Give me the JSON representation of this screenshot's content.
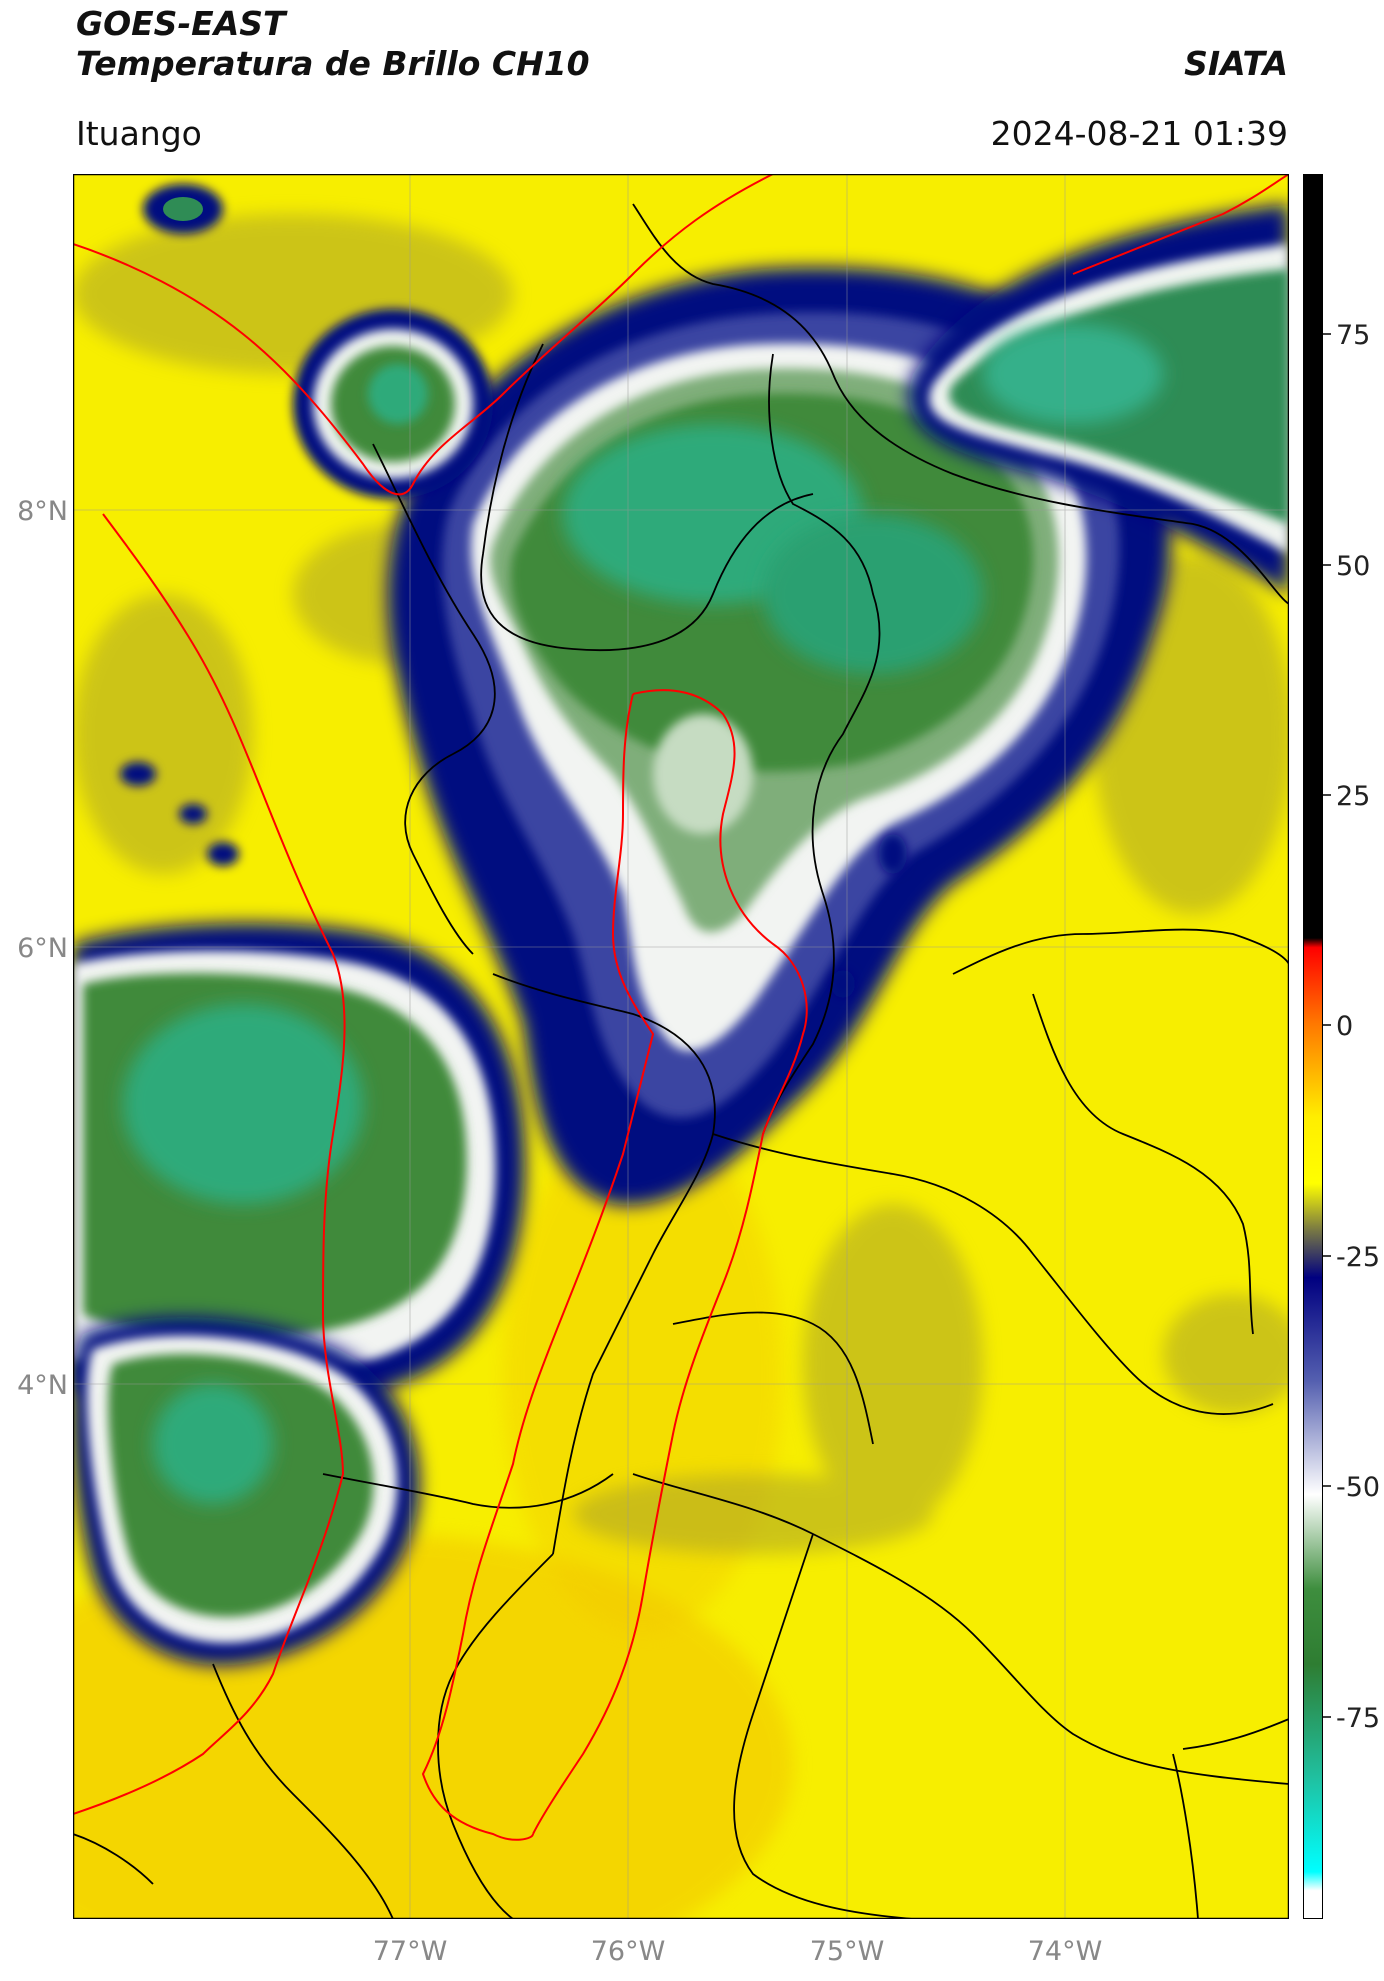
{
  "header": {
    "satellite": "GOES-EAST",
    "product": "Temperatura de Brillo CH10",
    "brand": "SIATA",
    "location": "Ituango",
    "datetime": "2024-08-21 01:39"
  },
  "map": {
    "lat_labels": [
      "8°N",
      "6°N",
      "4°N"
    ],
    "lon_labels": [
      "77°W",
      "76°W",
      "75°W",
      "74°W"
    ]
  },
  "colorbar": {
    "ticks": [
      "75",
      "50",
      "25",
      "0",
      "-25",
      "-50",
      "-75"
    ],
    "range": [
      -95,
      90
    ],
    "stops": [
      {
        "value": 90,
        "color": "#000000"
      },
      {
        "value": 9,
        "color": "#000000"
      },
      {
        "value": 8,
        "color": "#ff0000"
      },
      {
        "value": 0,
        "color": "#ff7700"
      },
      {
        "value": -10,
        "color": "#ffee00"
      },
      {
        "value": -17,
        "color": "#ffff00"
      },
      {
        "value": -22,
        "color": "#777744"
      },
      {
        "value": -27,
        "color": "#000080"
      },
      {
        "value": -38,
        "color": "#5560b0"
      },
      {
        "value": -50,
        "color": "#ffffff"
      },
      {
        "value": -60,
        "color": "#3e8e3e"
      },
      {
        "value": -68,
        "color": "#2e7d32"
      },
      {
        "value": -80,
        "color": "#20c0a0"
      },
      {
        "value": -90,
        "color": "#00ffff"
      },
      {
        "value": -92,
        "color": "#ffffff"
      },
      {
        "value": -95,
        "color": "#ffffff"
      }
    ]
  }
}
